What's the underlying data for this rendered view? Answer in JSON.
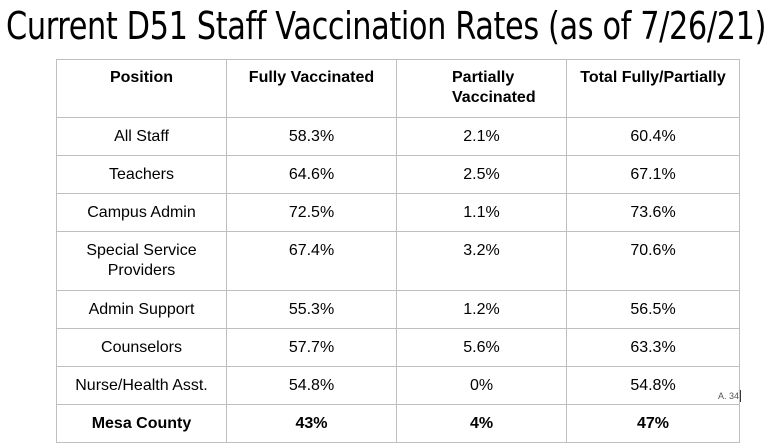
{
  "title": "Current D51 Staff Vaccination Rates (as of 7/26/21)",
  "table": {
    "headers": [
      "Position",
      "Fully Vaccinated",
      "Partially Vaccinated",
      "Total Fully/Partially"
    ],
    "rows": [
      [
        "All Staff",
        "58.3%",
        "2.1%",
        "60.4%"
      ],
      [
        "Teachers",
        "64.6%",
        "2.5%",
        "67.1%"
      ],
      [
        "Campus Admin",
        "72.5%",
        "1.1%",
        "73.6%"
      ],
      [
        "Special Service Providers",
        "67.4%",
        "3.2%",
        "70.6%"
      ],
      [
        "Admin Support",
        "55.3%",
        "1.2%",
        "56.5%"
      ],
      [
        "Counselors",
        "57.7%",
        "5.6%",
        "63.3%"
      ],
      [
        "Nurse/Health Asst.",
        "54.8%",
        "0%",
        "54.8%"
      ],
      [
        "Mesa County",
        "43%",
        "4%",
        "47%"
      ]
    ]
  },
  "page_label": "A. 34"
}
